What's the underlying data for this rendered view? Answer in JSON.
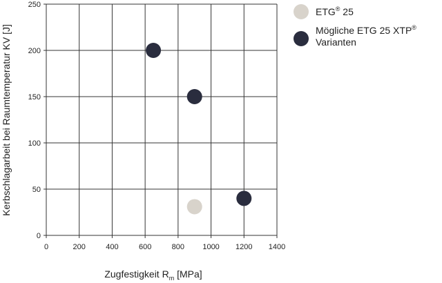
{
  "chart_data": {
    "type": "scatter",
    "xlabel": "Zugfestigkeit R",
    "xlabel_sub": "m",
    "xlabel_unit": " [MPa]",
    "ylabel": "Kerbschlagarbeit bei Raumtemperatur KV [J]",
    "xlim": [
      0,
      1400
    ],
    "ylim": [
      0,
      250
    ],
    "x_ticks": [
      0,
      200,
      400,
      600,
      800,
      1000,
      1200,
      1400
    ],
    "y_ticks": [
      0,
      50,
      100,
      150,
      200,
      250
    ],
    "grid": true,
    "legend_position": "right",
    "series": [
      {
        "name": "ETG® 25",
        "color": "#d8d3cb",
        "points": [
          {
            "x": 900,
            "y": 31
          }
        ]
      },
      {
        "name": "Mögliche ETG 25 XTP® Varianten",
        "color": "#2a2d3e",
        "points": [
          {
            "x": 650,
            "y": 200
          },
          {
            "x": 900,
            "y": 150
          },
          {
            "x": 1200,
            "y": 40
          }
        ]
      }
    ],
    "legend": [
      {
        "lines": [
          {
            "text": "ETG",
            "sup": "®",
            "rest": " 25"
          }
        ]
      },
      {
        "lines": [
          {
            "text": "Mögliche ETG 25 XTP",
            "sup": "®",
            "rest": ""
          },
          {
            "text": "Varianten",
            "sup": "",
            "rest": ""
          }
        ]
      }
    ]
  }
}
